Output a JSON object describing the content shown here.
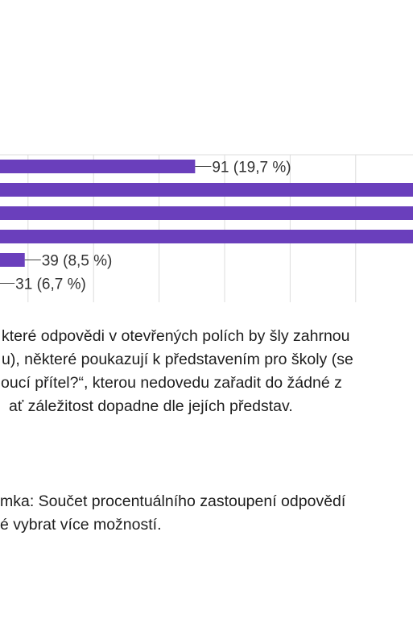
{
  "chart_data": {
    "type": "bar",
    "orientation": "horizontal",
    "grid": true,
    "bar_color": "#6a3fbc",
    "bars": [
      {
        "value": 91,
        "label": "91 (19,7 %)"
      },
      {
        "value": null,
        "label": ""
      },
      {
        "value": null,
        "label": ""
      },
      {
        "value": null,
        "label": ""
      },
      {
        "value": 39,
        "label": "39 (8,5 %)"
      },
      {
        "value": 31,
        "label": "31 (6,7 %)"
      }
    ]
  },
  "paragraph1": {
    "lines": [
      "které odpovědi v otevřených polích by šly zahrnou",
      "u), některé poukazují k představením pro školy (se",
      "oucí přítel?“, kterou nedovedu zařadit do žádné z",
      "ať záležitost dopadne dle jejích představ."
    ]
  },
  "paragraph2": {
    "lines": [
      "mka: Součet procentuálního zastoupení odpovědí",
      "é vybrat více možností."
    ]
  }
}
